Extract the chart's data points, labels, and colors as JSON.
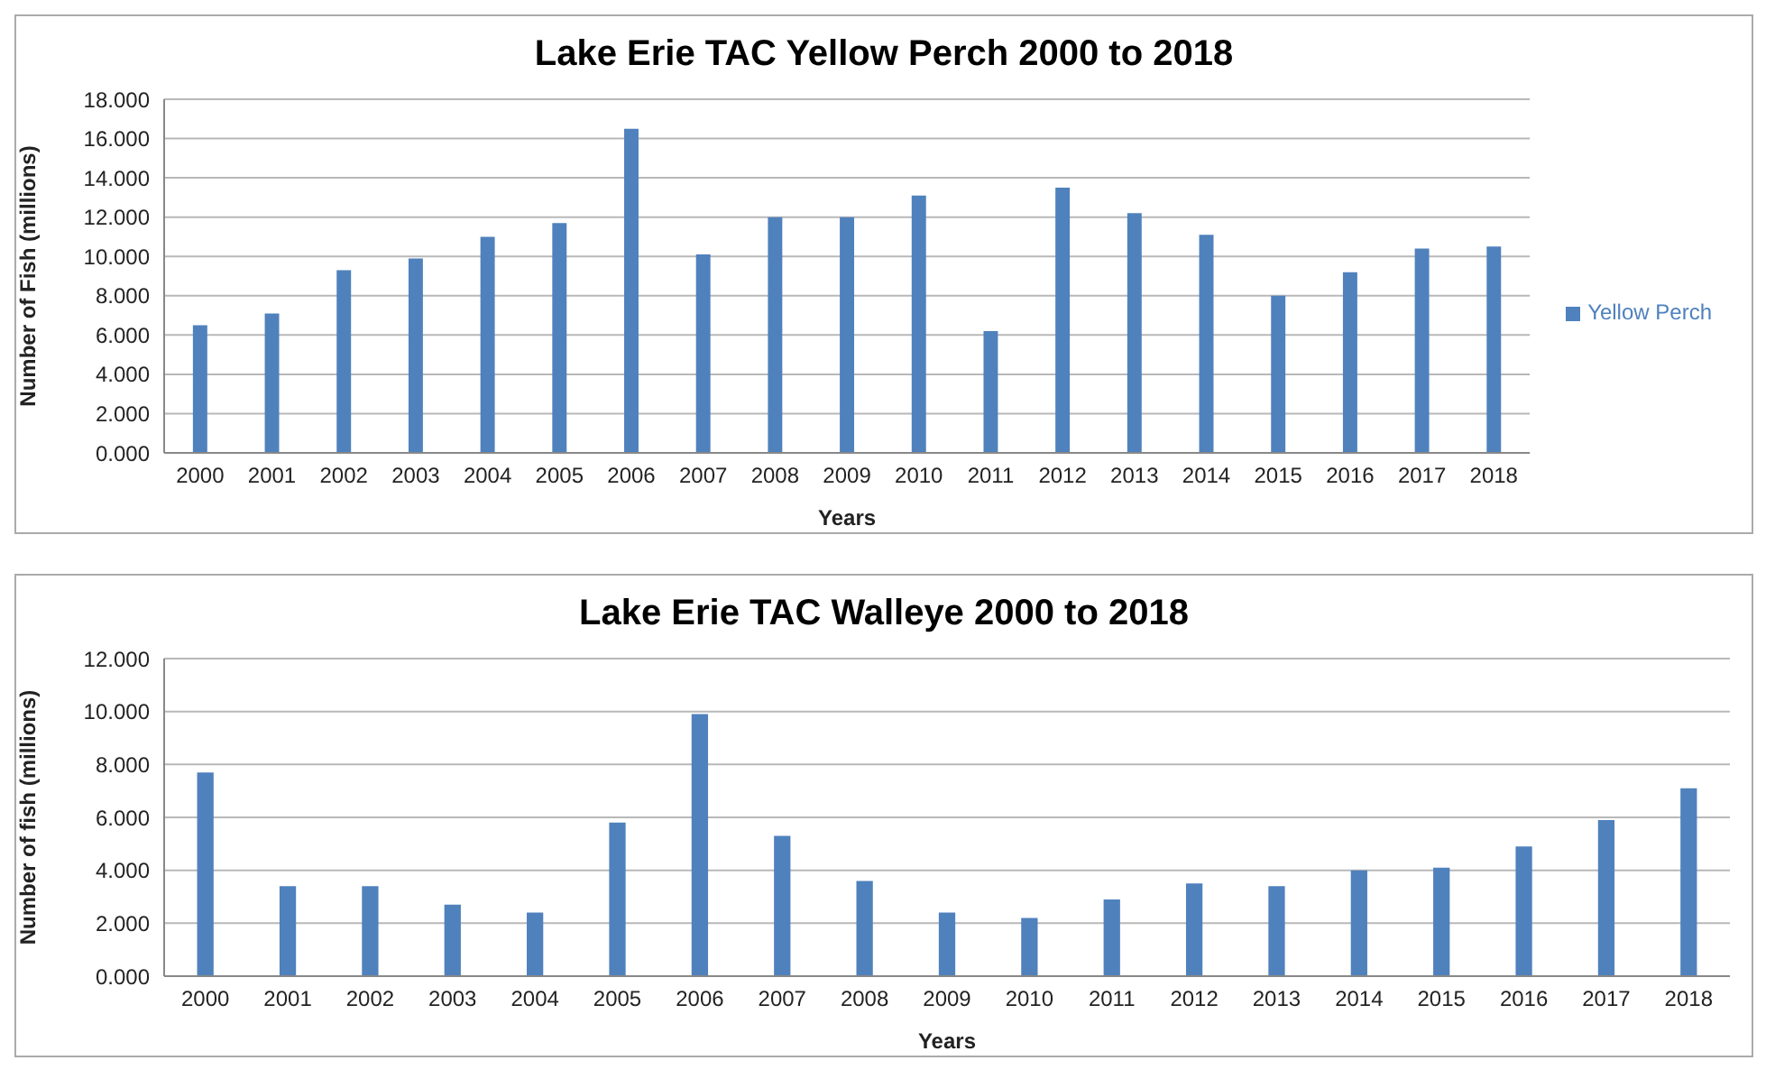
{
  "chart_data": [
    {
      "type": "bar",
      "title": "Lake Erie TAC Yellow Perch 2000 to 2018",
      "xlabel": "Years",
      "ylabel": "Number of Fish (millions)",
      "categories": [
        "2000",
        "2001",
        "2002",
        "2003",
        "2004",
        "2005",
        "2006",
        "2007",
        "2008",
        "2009",
        "2010",
        "2011",
        "2012",
        "2013",
        "2014",
        "2015",
        "2016",
        "2017",
        "2018"
      ],
      "series": [
        {
          "name": "Yellow Perch",
          "color": "#4f81bd",
          "values": [
            6.5,
            7.1,
            9.3,
            9.9,
            11.0,
            11.7,
            16.5,
            10.1,
            12.0,
            12.0,
            13.1,
            6.2,
            13.5,
            12.2,
            11.1,
            8.0,
            9.2,
            10.4,
            10.5
          ]
        }
      ],
      "ylim": [
        0,
        18
      ],
      "yticks": [
        {
          "value": 0,
          "label": "0.000"
        },
        {
          "value": 2,
          "label": "2.000"
        },
        {
          "value": 4,
          "label": "4.000"
        },
        {
          "value": 6,
          "label": "6.000"
        },
        {
          "value": 8,
          "label": "8.000"
        },
        {
          "value": 10,
          "label": "10.000"
        },
        {
          "value": 12,
          "label": "12.000"
        },
        {
          "value": 14,
          "label": "14.000"
        },
        {
          "value": 16,
          "label": "16.000"
        },
        {
          "value": 18,
          "label": "18.000"
        }
      ],
      "grid": "y",
      "legend": "right"
    },
    {
      "type": "bar",
      "title": "Lake Erie TAC Walleye 2000 to 2018",
      "xlabel": "Years",
      "ylabel": "Number of fish (millions)",
      "categories": [
        "2000",
        "2001",
        "2002",
        "2003",
        "2004",
        "2005",
        "2006",
        "2007",
        "2008",
        "2009",
        "2010",
        "2011",
        "2012",
        "2013",
        "2014",
        "2015",
        "2016",
        "2017",
        "2018"
      ],
      "series": [
        {
          "color": "#4f81bd",
          "values": [
            7.7,
            3.4,
            3.4,
            2.7,
            2.4,
            5.8,
            9.9,
            5.3,
            3.6,
            2.4,
            2.2,
            2.9,
            3.5,
            3.4,
            4.0,
            4.1,
            4.9,
            5.9,
            7.1
          ]
        }
      ],
      "ylim": [
        0,
        12
      ],
      "yticks": [
        {
          "value": 0,
          "label": "0.000"
        },
        {
          "value": 2,
          "label": "2.000"
        },
        {
          "value": 4,
          "label": "4.000"
        },
        {
          "value": 6,
          "label": "6.000"
        },
        {
          "value": 8,
          "label": "8.000"
        },
        {
          "value": 10,
          "label": "10.000"
        },
        {
          "value": 12,
          "label": "12.000"
        }
      ],
      "grid": "y"
    }
  ]
}
